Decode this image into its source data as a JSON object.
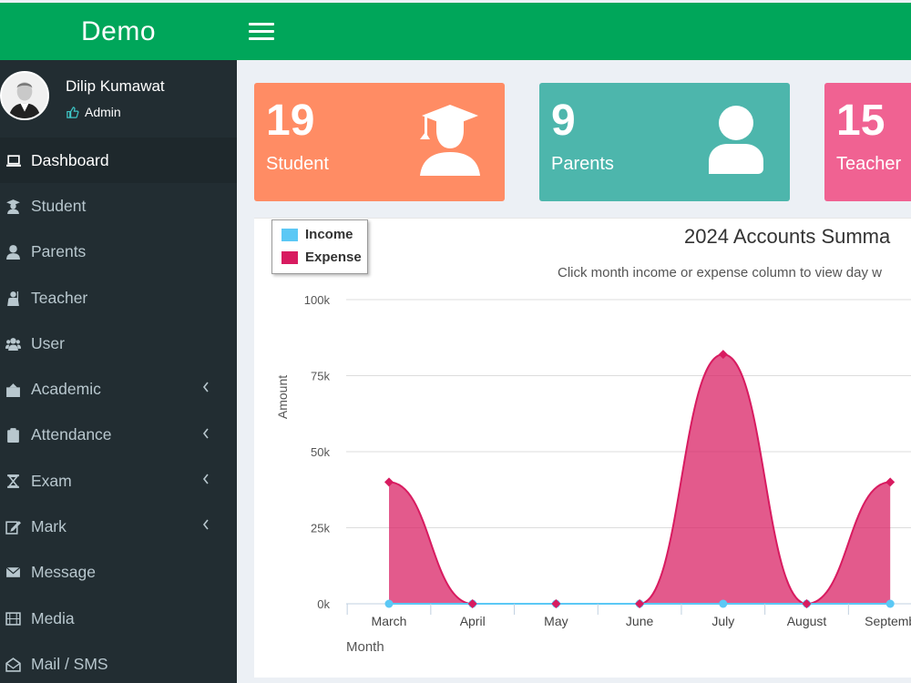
{
  "app": {
    "logo": "Demo"
  },
  "user": {
    "name": "Dilip Kumawat",
    "role": "Admin"
  },
  "sidebar": {
    "items": [
      {
        "label": "Dashboard",
        "icon": "laptop-icon",
        "active": true,
        "has_submenu": false
      },
      {
        "label": "Student",
        "icon": "student-icon",
        "active": false,
        "has_submenu": false
      },
      {
        "label": "Parents",
        "icon": "user-icon",
        "active": false,
        "has_submenu": false
      },
      {
        "label": "Teacher",
        "icon": "teacher-icon",
        "active": false,
        "has_submenu": false
      },
      {
        "label": "User",
        "icon": "users-icon",
        "active": false,
        "has_submenu": false
      },
      {
        "label": "Academic",
        "icon": "building-icon",
        "active": false,
        "has_submenu": true
      },
      {
        "label": "Attendance",
        "icon": "clipboard-icon",
        "active": false,
        "has_submenu": true
      },
      {
        "label": "Exam",
        "icon": "hourglass-icon",
        "active": false,
        "has_submenu": true
      },
      {
        "label": "Mark",
        "icon": "pencil-square-icon",
        "active": false,
        "has_submenu": true
      },
      {
        "label": "Message",
        "icon": "envelope-icon",
        "active": false,
        "has_submenu": false
      },
      {
        "label": "Media",
        "icon": "film-icon",
        "active": false,
        "has_submenu": false
      },
      {
        "label": "Mail / SMS",
        "icon": "envelope-open-icon",
        "active": false,
        "has_submenu": false
      }
    ]
  },
  "stats": {
    "student": {
      "count": "19",
      "label": "Student",
      "color": "#ff8c64"
    },
    "parents": {
      "count": "9",
      "label": "Parents",
      "color": "#4db6ac"
    },
    "teacher": {
      "count": "15",
      "label": "Teacher",
      "color": "#f06292"
    }
  },
  "colors": {
    "header": "#00a65a",
    "sidebar": "#222d32",
    "income": "#5bc8f5",
    "expense": "#d81b60"
  },
  "chart_data": {
    "type": "area",
    "title": "2024 Accounts Summa",
    "subtitle": "Click month income or expense column to view day w",
    "xlabel": "Month",
    "ylabel": "Amount",
    "ylim": [
      0,
      100000
    ],
    "y_ticks": [
      "0k",
      "25k",
      "50k",
      "75k",
      "100k"
    ],
    "categories": [
      "March",
      "April",
      "May",
      "June",
      "July",
      "August",
      "Septemb"
    ],
    "legend": {
      "position": "top-left"
    },
    "grid": true,
    "series": [
      {
        "name": "Income",
        "color": "#5bc8f5",
        "values": [
          0,
          0,
          0,
          0,
          0,
          0,
          0
        ]
      },
      {
        "name": "Expense",
        "color": "#d81b60",
        "values": [
          40000,
          0,
          0,
          0,
          82000,
          0,
          40000
        ]
      }
    ]
  }
}
